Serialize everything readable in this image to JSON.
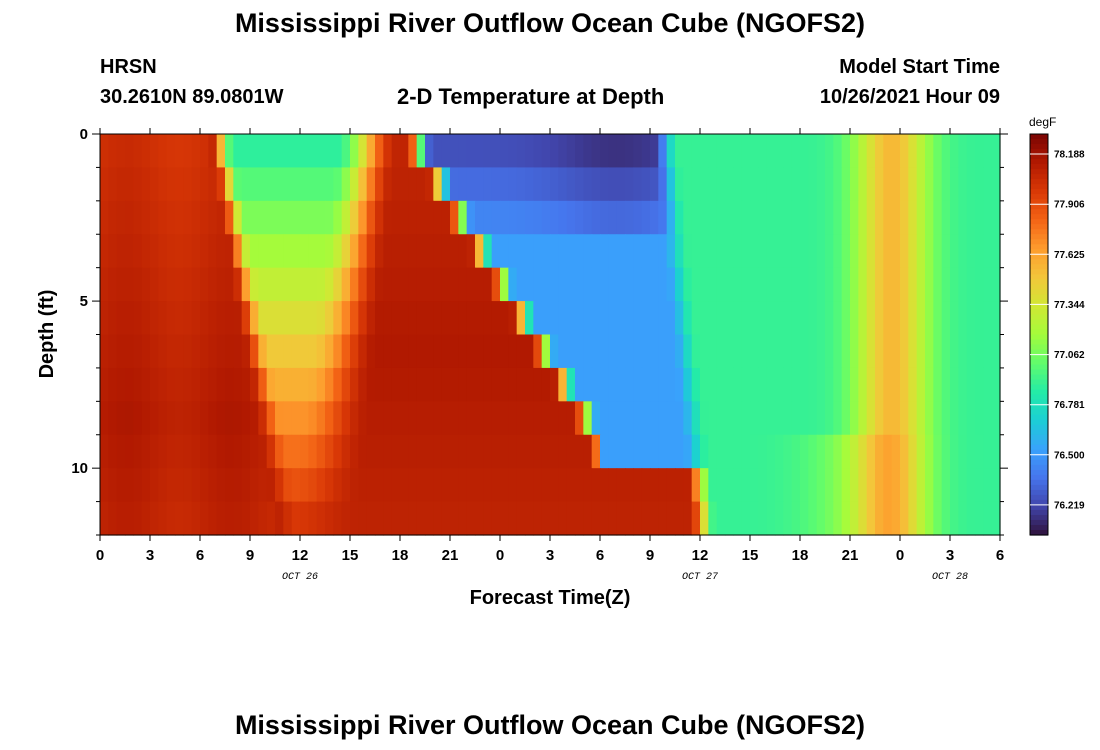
{
  "top_title": "Mississippi River Outflow Ocean Cube (NGOFS2)",
  "station": {
    "name": "HRSN",
    "coords": "30.2610N  89.0801W"
  },
  "subtitle": "2-D Temperature at Depth",
  "model_start": {
    "label": "Model Start Time",
    "value": "10/26/2021 Hour 09"
  },
  "bottom_title": "Mississippi River Outflow Ocean Cube (NGOFS2)",
  "chart_data": {
    "type": "heatmap",
    "title": "2-D Temperature at Depth",
    "xlabel": "Forecast Time(Z)",
    "ylabel": "Depth (ft)",
    "x_range_hours": [
      0,
      54
    ],
    "x_ticks": [
      {
        "h": 0,
        "label": "0"
      },
      {
        "h": 3,
        "label": "3"
      },
      {
        "h": 6,
        "label": "6"
      },
      {
        "h": 9,
        "label": "9"
      },
      {
        "h": 12,
        "label": "12"
      },
      {
        "h": 15,
        "label": "15"
      },
      {
        "h": 18,
        "label": "18"
      },
      {
        "h": 21,
        "label": "21"
      },
      {
        "h": 24,
        "label": "0"
      },
      {
        "h": 27,
        "label": "3"
      },
      {
        "h": 30,
        "label": "6"
      },
      {
        "h": 33,
        "label": "9"
      },
      {
        "h": 36,
        "label": "12"
      },
      {
        "h": 39,
        "label": "15"
      },
      {
        "h": 42,
        "label": "18"
      },
      {
        "h": 45,
        "label": "21"
      },
      {
        "h": 48,
        "label": "0"
      },
      {
        "h": 51,
        "label": "3"
      },
      {
        "h": 54,
        "label": "6"
      }
    ],
    "date_labels": [
      {
        "h": 12,
        "label": "OCT 26"
      },
      {
        "h": 36,
        "label": "OCT 27"
      },
      {
        "h": 51,
        "label": "OCT 28"
      }
    ],
    "y_range_ft": [
      0,
      12
    ],
    "y_ticks": [
      0,
      5,
      10
    ],
    "depth_levels": 12,
    "colorbar": {
      "unit": "degF",
      "min": 76.05,
      "max": 78.3,
      "ticks": [
        "78.188",
        "77.906",
        "77.625",
        "77.344",
        "77.062",
        "76.781",
        "76.500",
        "76.219"
      ],
      "colors": [
        "#30123b",
        "#4145ab",
        "#4675ed",
        "#39a2fc",
        "#1bcfd4",
        "#24eca6",
        "#61fc6c",
        "#a4fc3b",
        "#d1e834",
        "#f3c63a",
        "#fe9b2d",
        "#f36315",
        "#d93806",
        "#b11901",
        "#7a0403"
      ]
    }
  }
}
